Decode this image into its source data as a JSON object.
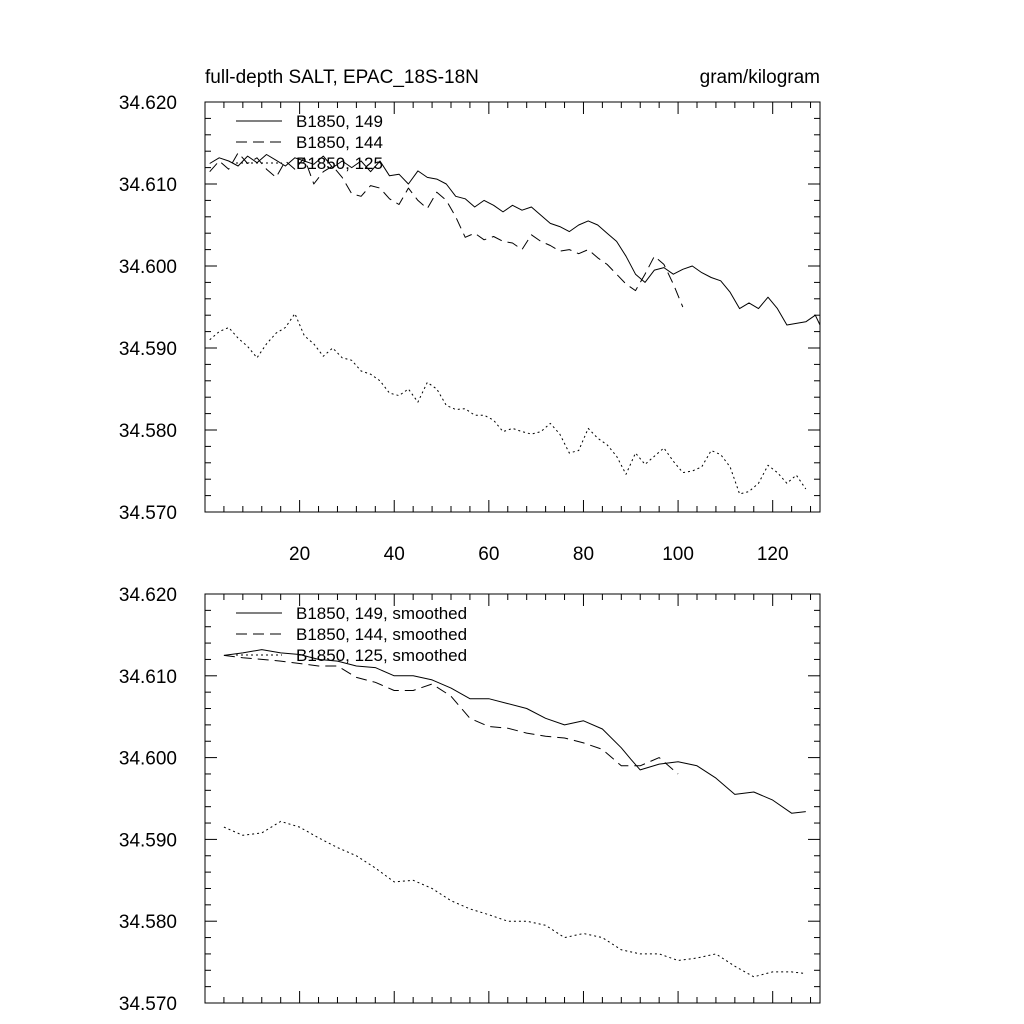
{
  "chart_data": [
    {
      "type": "line",
      "title": "full-depth SALT, EPAC_18S-18N",
      "units": "gram/kilogram",
      "xlim": [
        0,
        130
      ],
      "ylim": [
        34.57,
        34.62
      ],
      "xticks": [
        20,
        40,
        60,
        80,
        100,
        120
      ],
      "xtick_labels": [
        "20",
        "40",
        "60",
        "80",
        "100",
        "120"
      ],
      "yticks": [
        34.57,
        34.58,
        34.59,
        34.6,
        34.61,
        34.62
      ],
      "ytick_labels": [
        "34.570",
        "34.580",
        "34.590",
        "34.600",
        "34.610",
        "34.620"
      ],
      "legend_position": "top-left",
      "series": [
        {
          "name": "B1850, 149",
          "dash": "solid",
          "x": [
            1,
            3,
            5,
            7,
            9,
            11,
            13,
            15,
            17,
            19,
            21,
            23,
            25,
            27,
            29,
            31,
            33,
            35,
            37,
            39,
            41,
            43,
            45,
            47,
            49,
            51,
            53,
            55,
            57,
            59,
            61,
            63,
            65,
            67,
            69,
            71,
            73,
            75,
            77,
            79,
            81,
            83,
            85,
            87,
            89,
            91,
            93,
            95,
            97,
            99,
            101,
            103,
            105,
            107,
            109,
            111,
            113,
            115,
            117,
            119,
            121,
            123,
            125,
            127,
            129,
            130
          ],
          "y": [
            34.6125,
            34.6132,
            34.6128,
            34.6122,
            34.6134,
            34.6126,
            34.6136,
            34.6129,
            34.6122,
            34.6132,
            34.6128,
            34.6124,
            34.6134,
            34.612,
            34.6128,
            34.612,
            34.6128,
            34.6115,
            34.6128,
            34.611,
            34.6112,
            34.61,
            34.6116,
            34.6108,
            34.6106,
            34.61,
            34.6085,
            34.6082,
            34.6072,
            34.608,
            34.6074,
            34.6066,
            34.6074,
            34.6068,
            34.6072,
            34.6062,
            34.6052,
            34.6048,
            34.6042,
            34.605,
            34.6055,
            34.605,
            34.604,
            34.603,
            34.6012,
            34.599,
            34.598,
            34.5995,
            34.5998,
            34.599,
            34.5996,
            34.6,
            34.5992,
            34.5986,
            34.5982,
            34.5968,
            34.5948,
            34.5955,
            34.5948,
            34.5962,
            34.5948,
            34.5928,
            34.593,
            34.5932,
            34.594,
            34.5928
          ]
        },
        {
          "name": "B1850, 144",
          "dash": "dashed",
          "x": [
            1,
            3,
            5,
            7,
            9,
            11,
            13,
            15,
            17,
            19,
            21,
            23,
            25,
            27,
            29,
            31,
            33,
            35,
            37,
            39,
            41,
            43,
            45,
            47,
            49,
            51,
            53,
            55,
            57,
            59,
            61,
            63,
            65,
            67,
            69,
            71,
            73,
            75,
            77,
            79,
            81,
            83,
            85,
            87,
            89,
            91,
            93,
            95,
            97,
            99,
            101
          ],
          "y": [
            34.6115,
            34.6128,
            34.6118,
            34.6138,
            34.6125,
            34.6132,
            34.6118,
            34.6108,
            34.6128,
            34.6118,
            34.6132,
            34.61,
            34.6115,
            34.6122,
            34.6108,
            34.6088,
            34.6085,
            34.6098,
            34.6095,
            34.6082,
            34.6075,
            34.6095,
            34.608,
            34.607,
            34.609,
            34.608,
            34.606,
            34.6035,
            34.604,
            34.6032,
            34.6036,
            34.603,
            34.6028,
            34.602,
            34.6038,
            34.603,
            34.6025,
            34.6018,
            34.602,
            34.6015,
            34.602,
            34.601,
            34.6002,
            34.599,
            34.5978,
            34.597,
            34.599,
            34.6012,
            34.6002,
            34.5978,
            34.595
          ]
        },
        {
          "name": "B1850, 125",
          "dash": "dotted",
          "x": [
            1,
            3,
            5,
            7,
            9,
            11,
            13,
            15,
            17,
            19,
            21,
            23,
            25,
            27,
            29,
            31,
            33,
            35,
            37,
            39,
            41,
            43,
            45,
            47,
            49,
            51,
            53,
            55,
            57,
            59,
            61,
            63,
            65,
            67,
            69,
            71,
            73,
            75,
            77,
            79,
            81,
            83,
            85,
            87,
            89,
            91,
            93,
            95,
            97,
            99,
            101,
            103,
            105,
            107,
            109,
            111,
            113,
            115,
            117,
            119,
            121,
            123,
            125,
            127
          ],
          "y": [
            34.591,
            34.592,
            34.5925,
            34.5912,
            34.5902,
            34.5888,
            34.5905,
            34.5918,
            34.5925,
            34.5942,
            34.5915,
            34.5905,
            34.589,
            34.59,
            34.5888,
            34.5885,
            34.5872,
            34.5868,
            34.586,
            34.5845,
            34.5842,
            34.585,
            34.5834,
            34.5858,
            34.585,
            34.583,
            34.5825,
            34.5826,
            34.5818,
            34.5818,
            34.5812,
            34.5798,
            34.5802,
            34.5798,
            34.5795,
            34.5798,
            34.5808,
            34.5795,
            34.5772,
            34.5775,
            34.5802,
            34.579,
            34.5782,
            34.5768,
            34.5746,
            34.5772,
            34.5758,
            34.5768,
            34.5778,
            34.5762,
            34.5748,
            34.575,
            34.5755,
            34.5775,
            34.577,
            34.5755,
            34.5722,
            34.5725,
            34.5735,
            34.5757,
            34.5748,
            34.5735,
            34.5745,
            34.5728
          ]
        }
      ]
    },
    {
      "type": "line",
      "xlim": [
        0,
        130
      ],
      "ylim": [
        34.57,
        34.62
      ],
      "xticks": [
        20,
        40,
        60,
        80,
        100,
        120
      ],
      "yticks": [
        34.57,
        34.58,
        34.59,
        34.6,
        34.61,
        34.62
      ],
      "ytick_labels": [
        "34.570",
        "34.580",
        "34.590",
        "34.600",
        "34.610",
        "34.620"
      ],
      "legend_position": "top-left",
      "series": [
        {
          "name": "B1850, 149, smoothed",
          "dash": "solid",
          "x": [
            4,
            8,
            12,
            16,
            20,
            24,
            28,
            32,
            36,
            40,
            44,
            48,
            52,
            56,
            60,
            64,
            68,
            72,
            76,
            80,
            84,
            88,
            90,
            92,
            96,
            100,
            104,
            108,
            112,
            116,
            120,
            124,
            127
          ],
          "y": [
            34.6125,
            34.6128,
            34.6132,
            34.6128,
            34.6126,
            34.612,
            34.6118,
            34.6112,
            34.611,
            34.61,
            34.61,
            34.6095,
            34.6085,
            34.6072,
            34.6072,
            34.6066,
            34.606,
            34.6048,
            34.604,
            34.6045,
            34.6035,
            34.6012,
            34.5998,
            34.5985,
            34.5992,
            34.5995,
            34.599,
            34.5975,
            34.5955,
            34.5958,
            34.5948,
            34.5932,
            34.5934
          ]
        },
        {
          "name": "B1850, 144, smoothed",
          "dash": "dashed",
          "x": [
            4,
            8,
            12,
            16,
            20,
            24,
            28,
            32,
            36,
            40,
            44,
            48,
            52,
            56,
            60,
            64,
            68,
            72,
            76,
            80,
            84,
            88,
            92,
            96,
            100
          ],
          "y": [
            34.6125,
            34.6122,
            34.612,
            34.6118,
            34.6115,
            34.6112,
            34.6112,
            34.6098,
            34.6092,
            34.6082,
            34.6082,
            34.609,
            34.6075,
            34.6048,
            34.6038,
            34.6036,
            34.603,
            34.6026,
            34.6024,
            34.6018,
            34.601,
            34.599,
            34.599,
            34.6,
            34.598
          ]
        },
        {
          "name": "B1850, 125, smoothed",
          "dash": "dotted",
          "x": [
            4,
            8,
            12,
            16,
            20,
            24,
            28,
            32,
            36,
            40,
            44,
            48,
            52,
            56,
            60,
            64,
            68,
            72,
            76,
            80,
            84,
            88,
            92,
            96,
            100,
            104,
            108,
            112,
            116,
            120,
            124,
            127
          ],
          "y": [
            34.5915,
            34.5905,
            34.5908,
            34.5922,
            34.5915,
            34.5902,
            34.589,
            34.588,
            34.5865,
            34.5848,
            34.585,
            34.584,
            34.5825,
            34.5815,
            34.5808,
            34.58,
            34.58,
            34.5795,
            34.578,
            34.5785,
            34.578,
            34.5765,
            34.576,
            34.576,
            34.5752,
            34.5755,
            34.576,
            34.5745,
            34.5732,
            34.5738,
            34.5738,
            34.5736
          ]
        }
      ]
    }
  ]
}
